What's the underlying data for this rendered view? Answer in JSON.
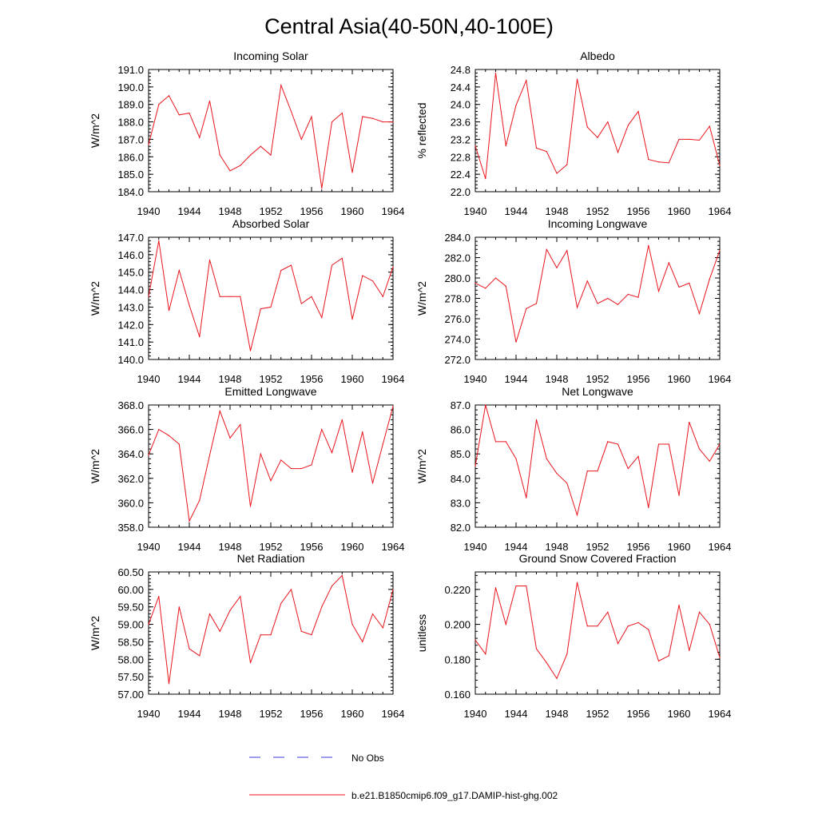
{
  "figure_title": "Central Asia(40-50N,40-100E)",
  "colors": {
    "series": "#e8141c",
    "obs": "#3d3dd9",
    "axis": "#000000"
  },
  "legend": {
    "obs_label": "No Obs",
    "model_label": "b.e21.B1850cmip6.f09_g17.DAMIP-hist-ghg.002"
  },
  "chart_data": [
    {
      "type": "line",
      "title": "Incoming Solar",
      "ylabel": "W/m^2",
      "xlim": [
        1940,
        1964
      ],
      "ylim": [
        184.0,
        191.0
      ],
      "xticks": [
        "1940",
        "1944",
        "1948",
        "1952",
        "1956",
        "1960",
        "1964"
      ],
      "yticks": [
        "184.0",
        "185.0",
        "186.0",
        "187.0",
        "188.0",
        "189.0",
        "190.0",
        "191.0"
      ],
      "x": [
        1940,
        1941,
        1942,
        1943,
        1944,
        1945,
        1946,
        1947,
        1948,
        1949,
        1950,
        1951,
        1952,
        1953,
        1954,
        1955,
        1956,
        1957,
        1958,
        1959,
        1960,
        1961,
        1962,
        1963,
        1964
      ],
      "series": [
        {
          "values": [
            186.7,
            189.0,
            189.5,
            188.4,
            188.5,
            187.1,
            189.2,
            186.1,
            185.2,
            185.5,
            186.1,
            186.6,
            186.1,
            190.1,
            188.6,
            187.0,
            188.3,
            184.2,
            188.0,
            188.5,
            185.1,
            188.3,
            188.2,
            188.0,
            188.0
          ]
        }
      ]
    },
    {
      "type": "line",
      "title": "Albedo",
      "ylabel": "% reflected",
      "xlim": [
        1940,
        1964
      ],
      "ylim": [
        22.0,
        24.8
      ],
      "xticks": [
        "1940",
        "1944",
        "1948",
        "1952",
        "1956",
        "1960",
        "1964"
      ],
      "yticks": [
        "22.0",
        "22.4",
        "22.8",
        "23.2",
        "23.6",
        "24.0",
        "24.4",
        "24.8"
      ],
      "x": [
        1940,
        1941,
        1942,
        1943,
        1944,
        1945,
        1946,
        1947,
        1948,
        1949,
        1950,
        1951,
        1952,
        1953,
        1954,
        1955,
        1956,
        1957,
        1958,
        1959,
        1960,
        1961,
        1962,
        1963,
        1964
      ],
      "series": [
        {
          "values": [
            23.05,
            22.3,
            24.72,
            23.05,
            23.98,
            24.55,
            23.0,
            22.92,
            22.42,
            22.62,
            24.58,
            23.48,
            23.24,
            23.6,
            22.9,
            23.52,
            23.84,
            22.74,
            22.68,
            22.66,
            23.2,
            23.2,
            23.18,
            23.5,
            22.6
          ]
        }
      ]
    },
    {
      "type": "line",
      "title": "Absorbed Solar",
      "ylabel": "W/m^2",
      "xlim": [
        1940,
        1964
      ],
      "ylim": [
        140.0,
        147.0
      ],
      "xticks": [
        "1940",
        "1944",
        "1948",
        "1952",
        "1956",
        "1960",
        "1964"
      ],
      "yticks": [
        "140.0",
        "141.0",
        "142.0",
        "143.0",
        "144.0",
        "145.0",
        "146.0",
        "147.0"
      ],
      "x": [
        1940,
        1941,
        1942,
        1943,
        1944,
        1945,
        1946,
        1947,
        1948,
        1949,
        1950,
        1951,
        1952,
        1953,
        1954,
        1955,
        1956,
        1957,
        1958,
        1959,
        1960,
        1961,
        1962,
        1963,
        1964
      ],
      "series": [
        {
          "values": [
            143.6,
            146.8,
            142.8,
            145.1,
            143.1,
            141.3,
            145.7,
            143.6,
            143.6,
            143.6,
            140.5,
            142.9,
            143.0,
            145.1,
            145.4,
            143.2,
            143.6,
            142.4,
            145.4,
            145.8,
            142.3,
            144.8,
            144.5,
            143.6,
            145.3
          ]
        }
      ]
    },
    {
      "type": "line",
      "title": "Incoming Longwave",
      "ylabel": "W/m^2",
      "xlim": [
        1940,
        1964
      ],
      "ylim": [
        272.0,
        284.0
      ],
      "xticks": [
        "1940",
        "1944",
        "1948",
        "1952",
        "1956",
        "1960",
        "1964"
      ],
      "yticks": [
        "272.0",
        "274.0",
        "276.0",
        "278.0",
        "280.0",
        "282.0",
        "284.0"
      ],
      "x": [
        1940,
        1941,
        1942,
        1943,
        1944,
        1945,
        1946,
        1947,
        1948,
        1949,
        1950,
        1951,
        1952,
        1953,
        1954,
        1955,
        1956,
        1957,
        1958,
        1959,
        1960,
        1961,
        1962,
        1963,
        1964
      ],
      "series": [
        {
          "values": [
            279.5,
            279.0,
            280.0,
            279.2,
            273.7,
            277.0,
            277.5,
            282.8,
            281.0,
            282.7,
            277.1,
            279.7,
            277.5,
            278.0,
            277.4,
            278.4,
            278.1,
            283.2,
            278.7,
            281.5,
            279.1,
            279.5,
            276.5,
            279.9,
            282.7
          ]
        }
      ]
    },
    {
      "type": "line",
      "title": "Emitted Longwave",
      "ylabel": "W/m^2",
      "xlim": [
        1940,
        1964
      ],
      "ylim": [
        358.0,
        368.0
      ],
      "xticks": [
        "1940",
        "1944",
        "1948",
        "1952",
        "1956",
        "1960",
        "1964"
      ],
      "yticks": [
        "358.0",
        "360.0",
        "362.0",
        "364.0",
        "366.0",
        "368.0"
      ],
      "x": [
        1940,
        1941,
        1942,
        1943,
        1944,
        1945,
        1946,
        1947,
        1948,
        1949,
        1950,
        1951,
        1952,
        1953,
        1954,
        1955,
        1956,
        1957,
        1958,
        1959,
        1960,
        1961,
        1962,
        1963,
        1964
      ],
      "series": [
        {
          "values": [
            363.9,
            366.0,
            365.5,
            364.8,
            358.5,
            360.2,
            363.9,
            367.5,
            365.3,
            366.4,
            359.7,
            364.0,
            361.8,
            363.5,
            362.8,
            362.8,
            363.1,
            366.0,
            364.1,
            366.8,
            362.5,
            365.8,
            361.6,
            364.8,
            367.9
          ]
        }
      ]
    },
    {
      "type": "line",
      "title": "Net Longwave",
      "ylabel": "W/m^2",
      "xlim": [
        1940,
        1964
      ],
      "ylim": [
        82.0,
        87.0
      ],
      "xticks": [
        "1940",
        "1944",
        "1948",
        "1952",
        "1956",
        "1960",
        "1964"
      ],
      "yticks": [
        "82.0",
        "83.0",
        "84.0",
        "85.0",
        "86.0",
        "87.0"
      ],
      "x": [
        1940,
        1941,
        1942,
        1943,
        1944,
        1945,
        1946,
        1947,
        1948,
        1949,
        1950,
        1951,
        1952,
        1953,
        1954,
        1955,
        1956,
        1957,
        1958,
        1959,
        1960,
        1961,
        1962,
        1963,
        1964
      ],
      "series": [
        {
          "values": [
            84.5,
            87.0,
            85.5,
            85.5,
            84.8,
            83.2,
            86.4,
            84.8,
            84.2,
            83.8,
            82.5,
            84.3,
            84.3,
            85.5,
            85.4,
            84.4,
            84.9,
            82.8,
            85.4,
            85.4,
            83.3,
            86.3,
            85.2,
            84.7,
            85.4
          ]
        }
      ]
    },
    {
      "type": "line",
      "title": "Net Radiation",
      "ylabel": "W/m^2",
      "xlim": [
        1940,
        1964
      ],
      "ylim": [
        57.0,
        60.5
      ],
      "xticks": [
        "1940",
        "1944",
        "1948",
        "1952",
        "1956",
        "1960",
        "1964"
      ],
      "yticks": [
        "57.00",
        "57.50",
        "58.00",
        "58.50",
        "59.00",
        "59.50",
        "60.00",
        "60.50"
      ],
      "x": [
        1940,
        1941,
        1942,
        1943,
        1944,
        1945,
        1946,
        1947,
        1948,
        1949,
        1950,
        1951,
        1952,
        1953,
        1954,
        1955,
        1956,
        1957,
        1958,
        1959,
        1960,
        1961,
        1962,
        1963,
        1964
      ],
      "series": [
        {
          "values": [
            59.0,
            59.8,
            57.3,
            59.5,
            58.3,
            58.1,
            59.3,
            58.8,
            59.4,
            59.8,
            57.9,
            58.7,
            58.7,
            59.6,
            60.0,
            58.8,
            58.7,
            59.5,
            60.1,
            60.4,
            59.0,
            58.5,
            59.3,
            58.9,
            60.0
          ]
        }
      ]
    },
    {
      "type": "line",
      "title": "Ground Snow Covered Fraction",
      "ylabel": "unitless",
      "xlim": [
        1940,
        1964
      ],
      "ylim": [
        0.16,
        0.23
      ],
      "xticks": [
        "1940",
        "1944",
        "1948",
        "1952",
        "1956",
        "1960",
        "1964"
      ],
      "yticks": [
        "0.160",
        "0.180",
        "0.200",
        "0.220"
      ],
      "x": [
        1940,
        1941,
        1942,
        1943,
        1944,
        1945,
        1946,
        1947,
        1948,
        1949,
        1950,
        1951,
        1952,
        1953,
        1954,
        1955,
        1956,
        1957,
        1958,
        1959,
        1960,
        1961,
        1962,
        1963,
        1964
      ],
      "series": [
        {
          "values": [
            0.191,
            0.183,
            0.221,
            0.2,
            0.222,
            0.222,
            0.186,
            0.178,
            0.169,
            0.183,
            0.224,
            0.199,
            0.199,
            0.207,
            0.189,
            0.199,
            0.201,
            0.197,
            0.179,
            0.182,
            0.211,
            0.185,
            0.207,
            0.2,
            0.181
          ]
        }
      ]
    }
  ]
}
